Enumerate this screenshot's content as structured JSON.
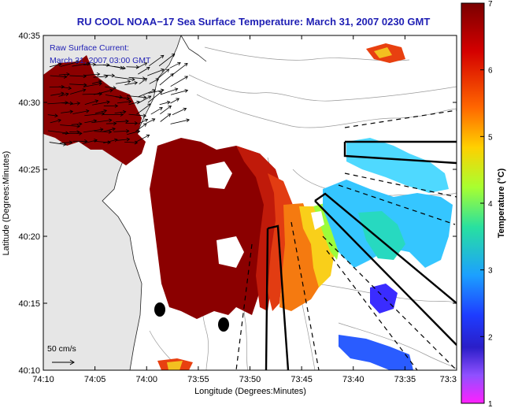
{
  "title": "RU COOL  NOAA−17  Sea Surface Temperature:  March 31, 2007 0230 GMT",
  "overlay_label": "Raw Surface Current:",
  "overlay_time": "March 31, 2007 03:00 GMT",
  "scale_label": "50 cm/s",
  "xlabel": "Longitude (Degrees:Minutes)",
  "ylabel": "Latitude (Degrees:Minutes)",
  "colorbar_label": "Temperature (°C)",
  "x_ticks": [
    "74:10",
    "74:05",
    "74:00",
    "73:55",
    "73:50",
    "73:45",
    "73:40",
    "73:35",
    "73:3"
  ],
  "y_ticks": [
    "40:35",
    "40:30",
    "40:25",
    "40:20",
    "40:15",
    "40:10"
  ],
  "cbar_ticks": [
    "7",
    "6",
    "5",
    "4",
    "3",
    "2",
    "1"
  ],
  "colors": {
    "title_blue": "#1f1fb4",
    "land_gray": "#e6e6e6",
    "sst_hot": "#8b0000",
    "sst_warm": "#e43f12",
    "sst_cool": "#35c6ff"
  }
}
